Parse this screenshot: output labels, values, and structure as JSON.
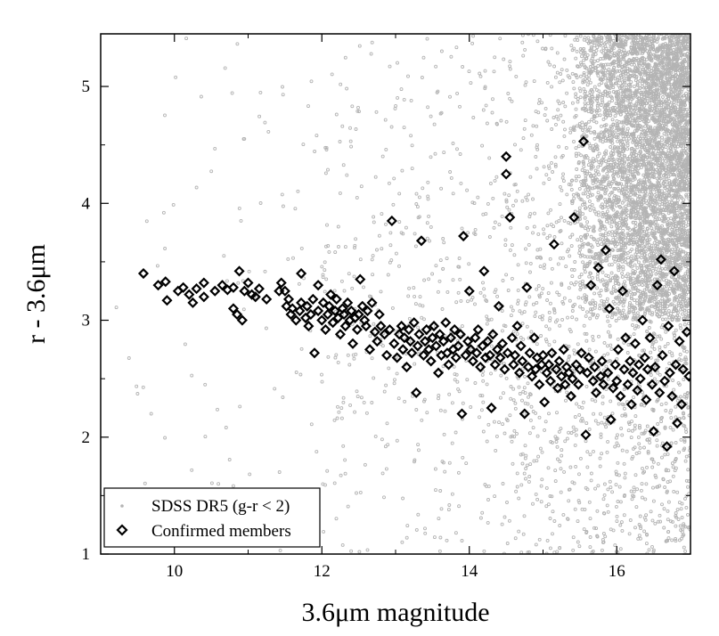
{
  "chart_data": {
    "type": "scatter",
    "title": "",
    "xlabel": "3.6μm magnitude",
    "ylabel": "r - 3.6μm",
    "xlim": [
      9.0,
      17.0
    ],
    "ylim": [
      1.0,
      5.45
    ],
    "xticks": [
      10,
      12,
      14,
      16
    ],
    "yticks": [
      1,
      2,
      3,
      4,
      5
    ],
    "grid": false,
    "legend_position": "bottom-left",
    "series": [
      {
        "name": "SDSS DR5 (g-r < 2)",
        "marker": "small-circle",
        "color": "#b4b4b4",
        "density_model": {
          "x_range": [
            9.0,
            17.0
          ],
          "y_range": [
            1.0,
            5.45
          ],
          "description": "sparse field stars at bright magnitudes, very dense cloud for magnitude > 15.5"
        }
      },
      {
        "name": "Confirmed members",
        "marker": "diamond",
        "color": "#000000",
        "points": [
          [
            9.58,
            3.4
          ],
          [
            9.78,
            3.3
          ],
          [
            9.88,
            3.33
          ],
          [
            9.9,
            3.17
          ],
          [
            10.05,
            3.25
          ],
          [
            10.12,
            3.28
          ],
          [
            10.2,
            3.22
          ],
          [
            10.25,
            3.15
          ],
          [
            10.3,
            3.27
          ],
          [
            10.4,
            3.32
          ],
          [
            10.4,
            3.2
          ],
          [
            10.55,
            3.25
          ],
          [
            10.65,
            3.3
          ],
          [
            10.72,
            3.26
          ],
          [
            10.8,
            3.28
          ],
          [
            10.8,
            3.1
          ],
          [
            10.85,
            3.05
          ],
          [
            10.88,
            3.42
          ],
          [
            10.92,
            3.0
          ],
          [
            10.95,
            3.25
          ],
          [
            11.0,
            3.32
          ],
          [
            11.05,
            3.22
          ],
          [
            11.1,
            3.2
          ],
          [
            11.15,
            3.27
          ],
          [
            11.25,
            3.18
          ],
          [
            11.42,
            3.25
          ],
          [
            11.45,
            3.32
          ],
          [
            11.5,
            3.25
          ],
          [
            11.52,
            3.12
          ],
          [
            11.55,
            3.18
          ],
          [
            11.58,
            3.05
          ],
          [
            11.6,
            3.1
          ],
          [
            11.65,
            3.0
          ],
          [
            11.7,
            3.08
          ],
          [
            11.72,
            3.15
          ],
          [
            11.72,
            3.4
          ],
          [
            11.78,
            3.02
          ],
          [
            11.8,
            3.12
          ],
          [
            11.82,
            2.95
          ],
          [
            11.85,
            3.05
          ],
          [
            11.88,
            3.18
          ],
          [
            11.9,
            2.72
          ],
          [
            11.95,
            3.08
          ],
          [
            11.95,
            3.3
          ],
          [
            12.0,
            3.0
          ],
          [
            12.02,
            3.15
          ],
          [
            12.05,
            2.92
          ],
          [
            12.08,
            3.05
          ],
          [
            12.1,
            3.12
          ],
          [
            12.12,
            3.22
          ],
          [
            12.15,
            2.98
          ],
          [
            12.18,
            3.08
          ],
          [
            12.2,
            3.18
          ],
          [
            12.22,
            3.02
          ],
          [
            12.25,
            2.88
          ],
          [
            12.28,
            3.1
          ],
          [
            12.3,
            3.05
          ],
          [
            12.32,
            2.95
          ],
          [
            12.35,
            3.15
          ],
          [
            12.38,
            3.0
          ],
          [
            12.4,
            3.08
          ],
          [
            12.42,
            2.8
          ],
          [
            12.45,
            3.02
          ],
          [
            12.48,
            2.92
          ],
          [
            12.5,
            3.05
          ],
          [
            12.52,
            3.35
          ],
          [
            12.55,
            3.12
          ],
          [
            12.58,
            3.0
          ],
          [
            12.6,
            2.95
          ],
          [
            12.62,
            3.08
          ],
          [
            12.65,
            2.75
          ],
          [
            12.68,
            3.15
          ],
          [
            12.72,
            2.9
          ],
          [
            12.75,
            2.82
          ],
          [
            12.78,
            3.05
          ],
          [
            12.8,
            2.95
          ],
          [
            12.85,
            2.88
          ],
          [
            12.88,
            2.7
          ],
          [
            12.92,
            2.92
          ],
          [
            12.95,
            3.85
          ],
          [
            12.98,
            2.8
          ],
          [
            13.02,
            2.68
          ],
          [
            13.05,
            2.88
          ],
          [
            13.08,
            2.95
          ],
          [
            13.1,
            2.75
          ],
          [
            13.12,
            2.85
          ],
          [
            13.15,
            2.6
          ],
          [
            13.18,
            2.92
          ],
          [
            13.2,
            2.82
          ],
          [
            13.22,
            2.72
          ],
          [
            13.25,
            2.98
          ],
          [
            13.28,
            2.38
          ],
          [
            13.3,
            2.78
          ],
          [
            13.32,
            2.88
          ],
          [
            13.35,
            3.68
          ],
          [
            13.38,
            2.7
          ],
          [
            13.4,
            2.82
          ],
          [
            13.42,
            2.92
          ],
          [
            13.45,
            2.75
          ],
          [
            13.48,
            2.65
          ],
          [
            13.5,
            2.85
          ],
          [
            13.52,
            2.95
          ],
          [
            13.55,
            2.78
          ],
          [
            13.58,
            2.55
          ],
          [
            13.6,
            2.88
          ],
          [
            13.62,
            2.7
          ],
          [
            13.65,
            2.82
          ],
          [
            13.68,
            2.98
          ],
          [
            13.7,
            2.72
          ],
          [
            13.72,
            2.62
          ],
          [
            13.75,
            2.85
          ],
          [
            13.78,
            2.75
          ],
          [
            13.8,
            2.92
          ],
          [
            13.82,
            2.68
          ],
          [
            13.85,
            2.78
          ],
          [
            13.88,
            2.88
          ],
          [
            13.9,
            2.2
          ],
          [
            13.92,
            3.72
          ],
          [
            13.95,
            2.7
          ],
          [
            13.98,
            2.82
          ],
          [
            14.0,
            3.25
          ],
          [
            14.02,
            2.75
          ],
          [
            14.05,
            2.65
          ],
          [
            14.08,
            2.85
          ],
          [
            14.1,
            2.72
          ],
          [
            14.12,
            2.92
          ],
          [
            14.15,
            2.6
          ],
          [
            14.18,
            2.78
          ],
          [
            14.2,
            3.42
          ],
          [
            14.22,
            2.68
          ],
          [
            14.25,
            2.82
          ],
          [
            14.28,
            2.7
          ],
          [
            14.3,
            2.25
          ],
          [
            14.32,
            2.88
          ],
          [
            14.35,
            2.62
          ],
          [
            14.38,
            2.75
          ],
          [
            14.4,
            3.12
          ],
          [
            14.42,
            2.68
          ],
          [
            14.45,
            2.8
          ],
          [
            14.48,
            2.58
          ],
          [
            14.5,
            4.4
          ],
          [
            14.5,
            4.25
          ],
          [
            14.52,
            2.72
          ],
          [
            14.55,
            3.88
          ],
          [
            14.58,
            2.85
          ],
          [
            14.6,
            2.62
          ],
          [
            14.62,
            2.7
          ],
          [
            14.65,
            2.95
          ],
          [
            14.68,
            2.55
          ],
          [
            14.7,
            2.78
          ],
          [
            14.72,
            2.65
          ],
          [
            14.75,
            2.2
          ],
          [
            14.78,
            3.28
          ],
          [
            14.8,
            2.6
          ],
          [
            14.82,
            2.72
          ],
          [
            14.85,
            2.52
          ],
          [
            14.88,
            2.85
          ],
          [
            14.9,
            2.58
          ],
          [
            14.92,
            2.68
          ],
          [
            14.95,
            2.45
          ],
          [
            14.98,
            2.62
          ],
          [
            15.0,
            2.7
          ],
          [
            15.02,
            2.3
          ],
          [
            15.05,
            2.55
          ],
          [
            15.08,
            2.62
          ],
          [
            15.1,
            2.48
          ],
          [
            15.12,
            2.72
          ],
          [
            15.15,
            3.65
          ],
          [
            15.18,
            2.58
          ],
          [
            15.2,
            2.42
          ],
          [
            15.22,
            2.65
          ],
          [
            15.25,
            2.52
          ],
          [
            15.28,
            2.75
          ],
          [
            15.3,
            2.45
          ],
          [
            15.32,
            2.6
          ],
          [
            15.35,
            2.55
          ],
          [
            15.38,
            2.35
          ],
          [
            15.4,
            2.5
          ],
          [
            15.42,
            3.88
          ],
          [
            15.45,
            2.62
          ],
          [
            15.48,
            2.45
          ],
          [
            15.5,
            2.58
          ],
          [
            15.52,
            2.72
          ],
          [
            15.55,
            4.53
          ],
          [
            15.58,
            2.02
          ],
          [
            15.6,
            2.55
          ],
          [
            15.62,
            2.68
          ],
          [
            15.65,
            3.3
          ],
          [
            15.68,
            2.48
          ],
          [
            15.7,
            2.6
          ],
          [
            15.72,
            2.38
          ],
          [
            15.75,
            3.45
          ],
          [
            15.78,
            2.52
          ],
          [
            15.8,
            2.65
          ],
          [
            15.82,
            2.45
          ],
          [
            15.85,
            3.6
          ],
          [
            15.88,
            2.55
          ],
          [
            15.9,
            3.1
          ],
          [
            15.92,
            2.15
          ],
          [
            15.95,
            2.42
          ],
          [
            15.98,
            2.62
          ],
          [
            16.0,
            2.48
          ],
          [
            16.02,
            2.75
          ],
          [
            16.05,
            2.35
          ],
          [
            16.08,
            3.25
          ],
          [
            16.1,
            2.58
          ],
          [
            16.12,
            2.85
          ],
          [
            16.15,
            2.45
          ],
          [
            16.18,
            2.65
          ],
          [
            16.2,
            2.28
          ],
          [
            16.22,
            2.55
          ],
          [
            16.25,
            2.8
          ],
          [
            16.28,
            2.4
          ],
          [
            16.3,
            2.62
          ],
          [
            16.32,
            2.5
          ],
          [
            16.35,
            3.0
          ],
          [
            16.38,
            2.68
          ],
          [
            16.4,
            2.32
          ],
          [
            16.42,
            2.58
          ],
          [
            16.45,
            2.85
          ],
          [
            16.48,
            2.45
          ],
          [
            16.5,
            2.05
          ],
          [
            16.52,
            2.6
          ],
          [
            16.55,
            3.3
          ],
          [
            16.58,
            2.38
          ],
          [
            16.6,
            3.52
          ],
          [
            16.62,
            2.7
          ],
          [
            16.65,
            2.48
          ],
          [
            16.68,
            1.92
          ],
          [
            16.7,
            2.95
          ],
          [
            16.72,
            2.55
          ],
          [
            16.75,
            2.35
          ],
          [
            16.78,
            3.42
          ],
          [
            16.8,
            2.62
          ],
          [
            16.82,
            2.12
          ],
          [
            16.85,
            2.82
          ],
          [
            16.88,
            2.28
          ],
          [
            16.9,
            2.58
          ],
          [
            16.95,
            2.9
          ],
          [
            16.98,
            2.52
          ]
        ]
      }
    ]
  }
}
